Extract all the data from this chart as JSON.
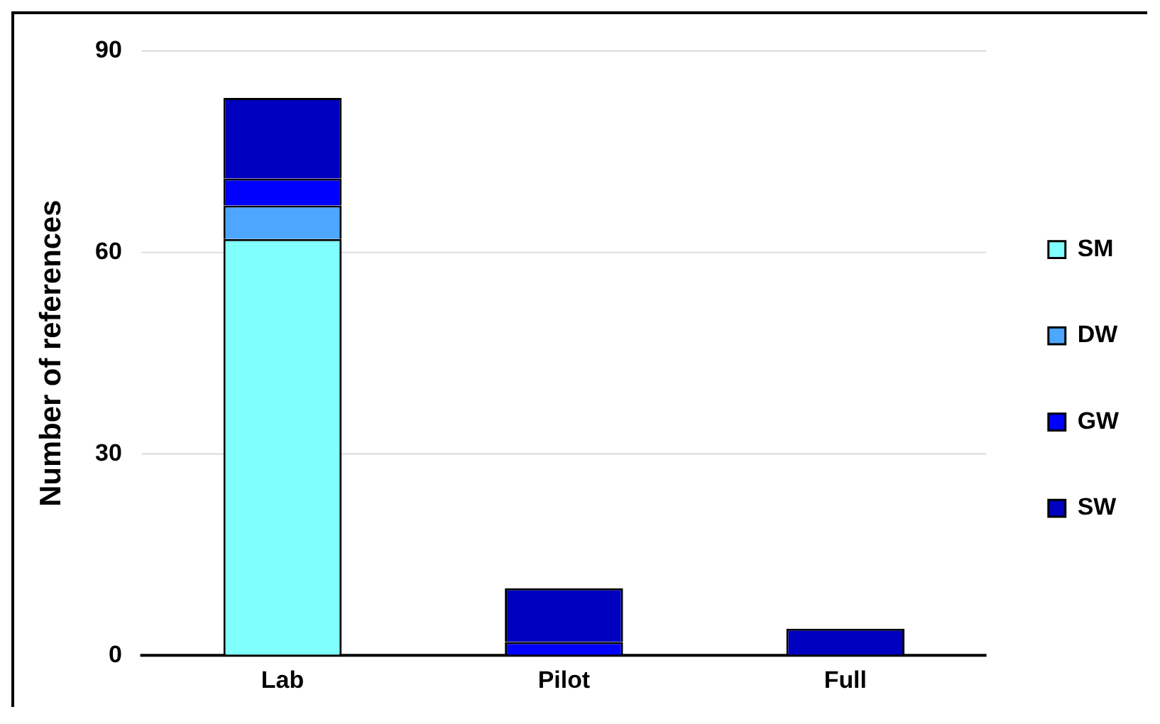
{
  "chart_data": {
    "type": "bar",
    "stacked": true,
    "ylabel": "Number of references",
    "categories": [
      "Lab",
      "Pilot",
      "Full"
    ],
    "series": [
      {
        "name": "SM",
        "color": "#80ffff",
        "values": [
          62,
          0,
          0
        ]
      },
      {
        "name": "DW",
        "color": "#4da6ff",
        "values": [
          5,
          0,
          0
        ]
      },
      {
        "name": "GW",
        "color": "#0000ff",
        "values": [
          4,
          2,
          0
        ]
      },
      {
        "name": "SW",
        "color": "#0000c0",
        "values": [
          12,
          8,
          4
        ]
      }
    ],
    "ylim": [
      0,
      90
    ],
    "yticks": [
      0,
      30,
      60,
      90
    ],
    "grid": "y",
    "legend": "right"
  }
}
